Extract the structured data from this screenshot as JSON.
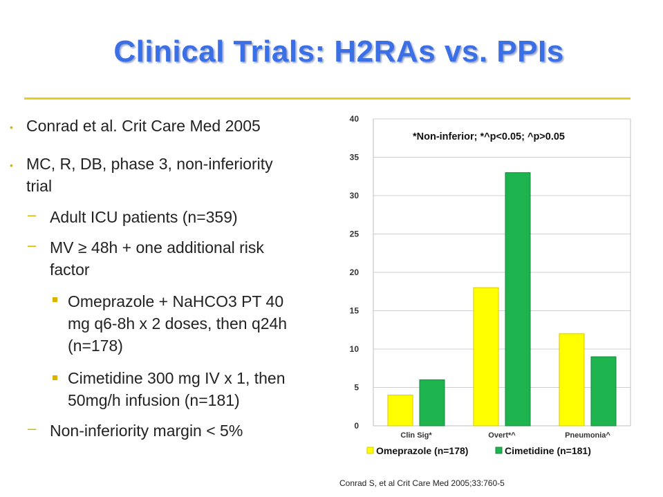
{
  "title": "Clinical Trials: H2RAs vs. PPIs",
  "bullets": {
    "b1": "Conrad et al. Crit Care Med 2005",
    "b2_line1": "MC, R, DB, phase 3, non-inferiority",
    "b2_line2": "trial",
    "d1": "Adult ICU patients (n=359)",
    "d2_line1": "MV ≥ 48h + one additional risk",
    "d2_line2": "factor",
    "s1_line1": "Omeprazole + NaHCO3 PT 40",
    "s1_line2": "mg q6-8h x 2 doses, then q24h",
    "s1_line3": "(n=178)",
    "s2_line1": "Cimetidine 300 mg IV x 1, then",
    "s2_line2": "50mg/h infusion (n=181)",
    "d3": "Non-inferiority margin < 5%"
  },
  "colors": {
    "omeprazole": "#ffff00",
    "cimetidine": "#1db34e",
    "title": "#3a6fe6",
    "accent": "#e6cf14"
  },
  "chart_data": {
    "type": "bar",
    "categories": [
      "Clin Sig*",
      "Overt*^",
      "Pneumonia^"
    ],
    "series": [
      {
        "name": "Omeprazole (n=178)",
        "values": [
          4,
          18,
          12
        ]
      },
      {
        "name": "Cimetidine (n=181)",
        "values": [
          6,
          33,
          9
        ]
      }
    ],
    "ylim": [
      0,
      40
    ],
    "yticks": [
      0,
      5,
      10,
      15,
      20,
      25,
      30,
      35,
      40
    ],
    "annotation": "*Non-inferior; *^p<0.05; ^p>0.05",
    "grid": true,
    "legend": "bottom"
  },
  "footnote": "Conrad S, et al Crit Care Med 2005;33:760-5"
}
